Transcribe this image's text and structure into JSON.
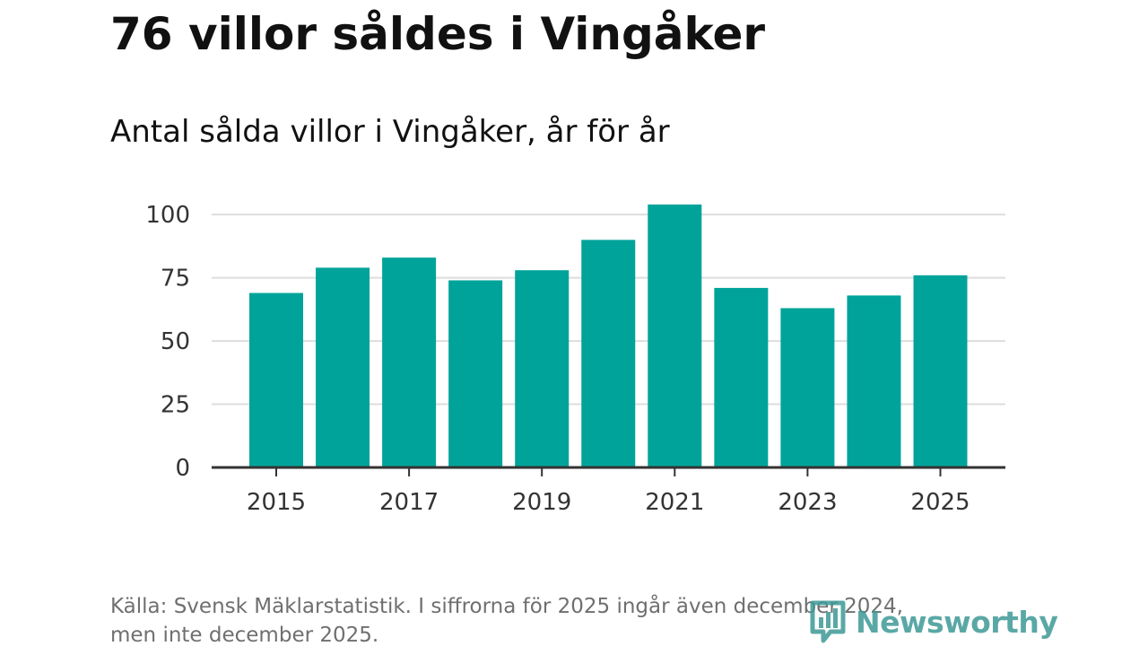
{
  "title": "76 villor såldes i Vingåker",
  "subtitle": "Antal sålda villor i Vingåker, år för år",
  "source_line1": "Källa: Svensk Mäklarstatistik. I siffrorna för 2025 ingår även december 2024,",
  "source_line2": "men inte december 2025.",
  "brand": {
    "name": "Newsworthy",
    "icon": "newsworthy-logo-icon"
  },
  "colors": {
    "bar": "#00a39a",
    "grid": "#dddddd",
    "axis": "#333333",
    "brand": "#3e9a96"
  },
  "chart_data": {
    "type": "bar",
    "categories": [
      "2015",
      "2016",
      "2017",
      "2018",
      "2019",
      "2020",
      "2021",
      "2022",
      "2023",
      "2024",
      "2025"
    ],
    "values": [
      69,
      79,
      83,
      74,
      78,
      90,
      104,
      71,
      63,
      68,
      76
    ],
    "x_tick_labels": [
      "2015",
      "2017",
      "2019",
      "2021",
      "2023",
      "2025"
    ],
    "y_ticks": [
      0,
      25,
      50,
      75,
      100
    ],
    "ylim": [
      0,
      110
    ],
    "title": "76 villor såldes i Vingåker",
    "subtitle": "Antal sålda villor i Vingåker, år för år",
    "xlabel": "",
    "ylabel": "",
    "grid": true,
    "legend": "none"
  }
}
